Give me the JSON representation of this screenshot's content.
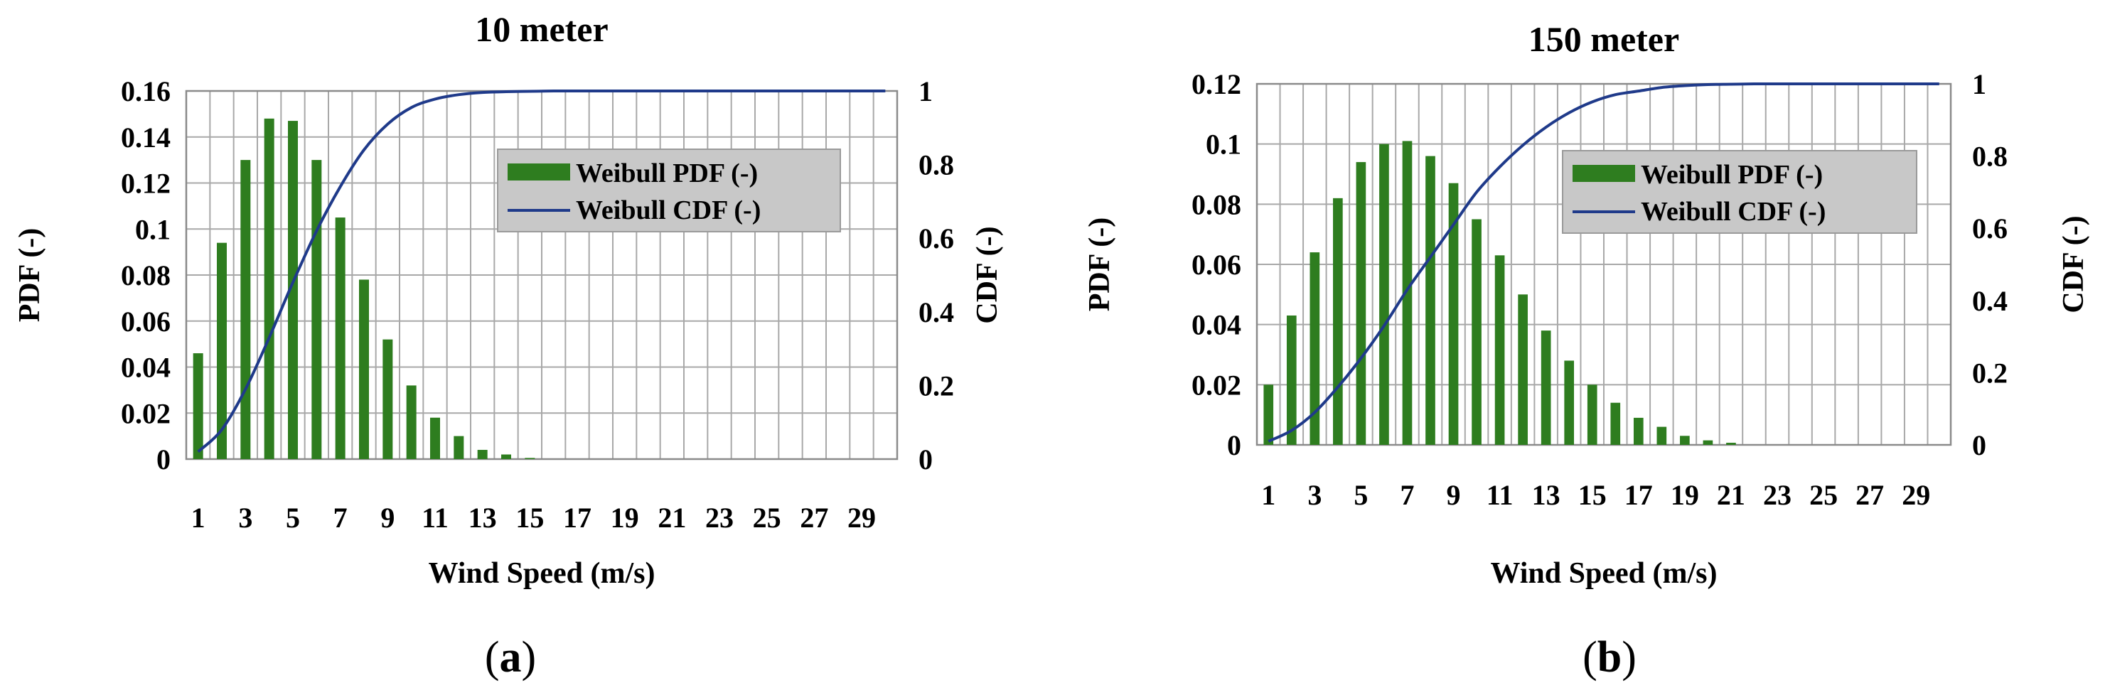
{
  "chart_data": [
    {
      "type": "bar",
      "panel": "a",
      "title": "10 meter",
      "xlabel": "Wind Speed (m/s)",
      "ylabel": "PDF (-)",
      "y2label": "CDF (-)",
      "ylim": [
        0,
        0.16
      ],
      "y2lim": [
        0,
        1
      ],
      "yticks": [
        "0",
        "0.02",
        "0.04",
        "0.06",
        "0.08",
        "0.1",
        "0.12",
        "0.14",
        "0.16"
      ],
      "y2ticks": [
        "0",
        "0.2",
        "0.4",
        "0.6",
        "0.8",
        "1"
      ],
      "xticks": [
        "1",
        "3",
        "5",
        "7",
        "9",
        "11",
        "13",
        "15",
        "17",
        "19",
        "21",
        "23",
        "25",
        "27",
        "29"
      ],
      "categories": [
        1,
        2,
        3,
        4,
        5,
        6,
        7,
        8,
        9,
        10,
        11,
        12,
        13,
        14,
        15,
        16,
        17,
        18,
        19,
        20,
        21,
        22,
        23,
        24,
        25,
        26,
        27,
        28,
        29,
        30
      ],
      "legend": [
        "Weibull PDF (-)",
        "Weibull CDF (-)"
      ],
      "legend_position": "top-right",
      "grid": true,
      "series": [
        {
          "name": "Weibull PDF (-)",
          "type": "bar",
          "color": "#2e7d1f",
          "values": [
            0.046,
            0.094,
            0.13,
            0.148,
            0.147,
            0.13,
            0.105,
            0.078,
            0.052,
            0.032,
            0.018,
            0.01,
            0.004,
            0.002,
            0.0005,
            0,
            0,
            0,
            0,
            0,
            0,
            0,
            0,
            0,
            0,
            0,
            0,
            0,
            0,
            0
          ]
        },
        {
          "name": "Weibull CDF (-)",
          "type": "line",
          "axis": "right",
          "color": "#1f3a8a",
          "values": [
            0.02,
            0.08,
            0.19,
            0.33,
            0.48,
            0.62,
            0.74,
            0.84,
            0.91,
            0.955,
            0.978,
            0.99,
            0.996,
            0.998,
            0.999,
            1,
            1,
            1,
            1,
            1,
            1,
            1,
            1,
            1,
            1,
            1,
            1,
            1,
            1,
            1
          ]
        }
      ]
    },
    {
      "type": "bar",
      "panel": "b",
      "title": "150 meter",
      "xlabel": "Wind Speed (m/s)",
      "ylabel": "PDF (-)",
      "y2label": "CDF (-)",
      "ylim": [
        0,
        0.12
      ],
      "y2lim": [
        0,
        1
      ],
      "yticks": [
        "0",
        "0.02",
        "0.04",
        "0.06",
        "0.08",
        "0.1",
        "0.12"
      ],
      "y2ticks": [
        "0",
        "0.2",
        "0.4",
        "0.6",
        "0.8",
        "1"
      ],
      "xticks": [
        "1",
        "3",
        "5",
        "7",
        "9",
        "11",
        "13",
        "15",
        "17",
        "19",
        "21",
        "23",
        "25",
        "27",
        "29"
      ],
      "categories": [
        1,
        2,
        3,
        4,
        5,
        6,
        7,
        8,
        9,
        10,
        11,
        12,
        13,
        14,
        15,
        16,
        17,
        18,
        19,
        20,
        21,
        22,
        23,
        24,
        25,
        26,
        27,
        28,
        29,
        30
      ],
      "legend": [
        "Weibull PDF (-)",
        "Weibull CDF (-)"
      ],
      "legend_position": "top-right",
      "grid": true,
      "series": [
        {
          "name": "Weibull PDF (-)",
          "type": "bar",
          "color": "#2e7d1f",
          "values": [
            0.02,
            0.043,
            0.064,
            0.082,
            0.094,
            0.1,
            0.101,
            0.096,
            0.087,
            0.075,
            0.063,
            0.05,
            0.038,
            0.028,
            0.02,
            0.014,
            0.009,
            0.006,
            0.003,
            0.0015,
            0.0007,
            0,
            0,
            0,
            0,
            0,
            0,
            0,
            0,
            0
          ]
        },
        {
          "name": "Weibull CDF (-)",
          "type": "line",
          "axis": "right",
          "color": "#1f3a8a",
          "values": [
            0.01,
            0.04,
            0.09,
            0.16,
            0.24,
            0.33,
            0.43,
            0.52,
            0.61,
            0.7,
            0.77,
            0.83,
            0.88,
            0.92,
            0.95,
            0.97,
            0.98,
            0.99,
            0.995,
            0.998,
            0.999,
            1,
            1,
            1,
            1,
            1,
            1,
            1,
            1,
            1
          ]
        }
      ]
    }
  ],
  "panels": {
    "a": {
      "label_open": "(",
      "label_letter": "a",
      "label_close": ")"
    },
    "b": {
      "label_open": "(",
      "label_letter": "b",
      "label_close": ")"
    }
  }
}
